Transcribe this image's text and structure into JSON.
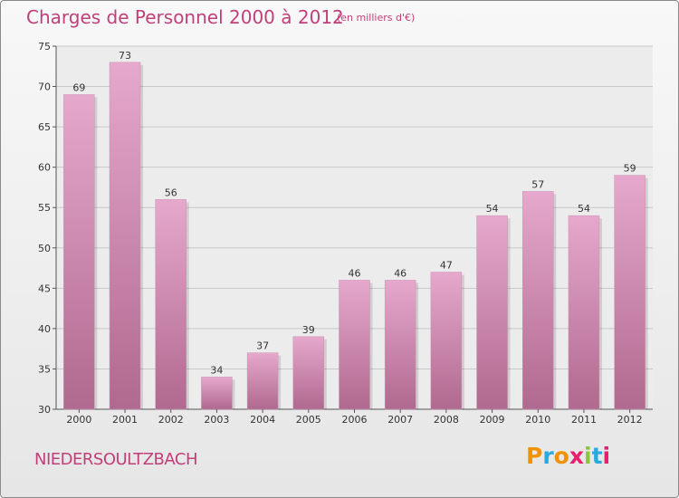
{
  "header": {
    "title": "Charges de Personnel 2000 à 2012",
    "subtitle": "(en milliers d'€)"
  },
  "footer": {
    "commune": "NIEDERSOULTZBACH",
    "logo_text": "Proxiti"
  },
  "colors": {
    "title": "#c0407a",
    "bar_top": "#e6a8cd",
    "bar_bottom": "#b0698f",
    "logo": [
      "#f39200",
      "#2aa9e0",
      "#f39200",
      "#e61f6e",
      "#8cc63f",
      "#2aa9e0",
      "#e61f6e"
    ]
  },
  "chart_data": {
    "type": "bar",
    "title": "Charges de Personnel 2000 à 2012",
    "subtitle": "(en milliers d'€)",
    "categories": [
      "2000",
      "2001",
      "2002",
      "2003",
      "2004",
      "2005",
      "2006",
      "2007",
      "2008",
      "2009",
      "2010",
      "2011",
      "2012"
    ],
    "values": [
      69,
      73,
      56,
      34,
      37,
      39,
      46,
      46,
      47,
      54,
      57,
      54,
      59
    ],
    "ylim": [
      30,
      75
    ],
    "yticks": [
      30,
      35,
      40,
      45,
      50,
      55,
      60,
      65,
      70,
      75
    ],
    "grid": true,
    "data_labels": true,
    "xlabel": "",
    "ylabel": ""
  }
}
